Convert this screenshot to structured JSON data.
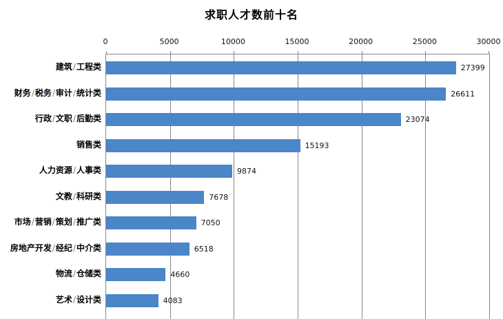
{
  "title": "求职人才数前十名",
  "chart_data": {
    "type": "bar",
    "orientation": "horizontal",
    "title": "求职人才数前十名",
    "categories": [
      "建筑/工程类",
      "财务/税务/审计/统计类",
      "行政/文职/后勤类",
      "销售类",
      "人力资源/人事类",
      "文教/科研类",
      "市场/营销/策划/推广类",
      "房地产开发/经纪/中介类",
      "物流/仓储类",
      "艺术/设计类"
    ],
    "values": [
      27399,
      26611,
      23074,
      15193,
      9874,
      7678,
      7050,
      6518,
      4660,
      4083
    ],
    "data_labels": [
      "27399",
      "26611",
      "23074",
      "15193",
      "9874",
      "7678",
      "7050",
      "6518",
      "4660",
      "4083"
    ],
    "xlim": [
      0,
      30000
    ],
    "x_ticks": [
      "0",
      "5000",
      "10000",
      "15000",
      "20000",
      "25000",
      "30000"
    ],
    "x_tick_values": [
      0,
      5000,
      10000,
      15000,
      20000,
      25000,
      30000
    ],
    "legend": "none",
    "grid": "vertical",
    "axis_position": "top",
    "bar_color": "#4a86c8",
    "gridline_color": "#848484",
    "text_color": "#111111"
  }
}
